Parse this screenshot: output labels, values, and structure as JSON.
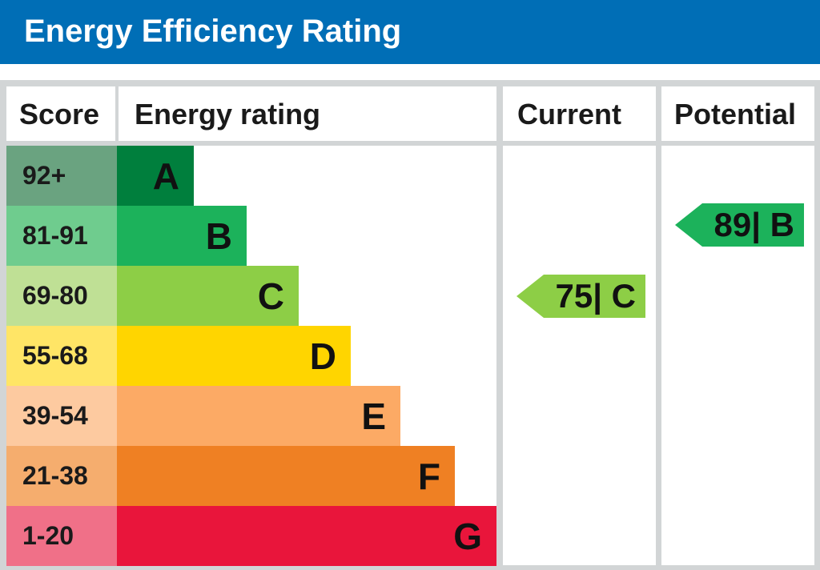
{
  "title": "Energy Efficiency Rating",
  "headers": {
    "score": "Score",
    "energy_rating": "Energy rating",
    "current": "Current",
    "potential": "Potential"
  },
  "chart_data": {
    "type": "bar",
    "bands": [
      {
        "letter": "A",
        "score": "92+",
        "color": "#007f3d",
        "score_bg": "#6aa380",
        "min": 92,
        "max": 100
      },
      {
        "letter": "B",
        "score": "81-91",
        "color": "#1cb25b",
        "score_bg": "#6fcc8e",
        "min": 81,
        "max": 91
      },
      {
        "letter": "C",
        "score": "69-80",
        "color": "#8dce46",
        "score_bg": "#bfe095",
        "min": 69,
        "max": 80
      },
      {
        "letter": "D",
        "score": "55-68",
        "color": "#ffd500",
        "score_bg": "#ffe566",
        "min": 55,
        "max": 68
      },
      {
        "letter": "E",
        "score": "39-54",
        "color": "#fcaa65",
        "score_bg": "#fdcaa0",
        "min": 39,
        "max": 54
      },
      {
        "letter": "F",
        "score": "21-38",
        "color": "#ef8023",
        "score_bg": "#f5ad6e",
        "min": 21,
        "max": 38
      },
      {
        "letter": "G",
        "score": "1-20",
        "color": "#e9153b",
        "score_bg": "#f07088",
        "min": 1,
        "max": 20
      }
    ],
    "current": {
      "value": 75,
      "band": "C",
      "label": "75| C",
      "color": "#8dce46"
    },
    "potential": {
      "value": 89,
      "band": "B",
      "label": "89| B",
      "color": "#1cb25b"
    }
  }
}
